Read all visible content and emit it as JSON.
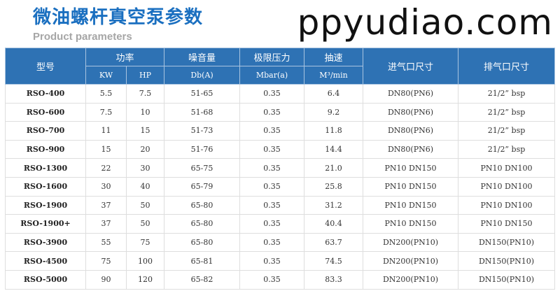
{
  "title": "微油螺杆真空泵参数",
  "subtitle": "Product parameters",
  "headers": {
    "model": "型号",
    "power": "功率",
    "kw": "KW",
    "hp": "HP",
    "noise": "噪音量",
    "noise_unit": "Db(A)",
    "pressure": "极限压力",
    "pressure_unit": "Mbar(a)",
    "speed": "抽速",
    "speed_unit": "M³/min",
    "inlet": "进气口尺寸",
    "outlet": "排气口尺寸"
  },
  "rows": [
    [
      "RSO-400",
      "5.5",
      "7.5",
      "51-65",
      "0.35",
      "6.4",
      "DN80(PN6)",
      "21/2” bsp"
    ],
    [
      "RSO-600",
      "7.5",
      "10",
      "51-68",
      "0.35",
      "9.2",
      "DN80(PN6)",
      "21/2” bsp"
    ],
    [
      "RSO-700",
      "11",
      "15",
      "51-73",
      "0.35",
      "11.8",
      "DN80(PN6)",
      "21/2” bsp"
    ],
    [
      "RSO-900",
      "15",
      "20",
      "51-76",
      "0.35",
      "14.4",
      "DN80(PN6)",
      "21/2” bsp"
    ],
    [
      "RSO-1300",
      "22",
      "30",
      "65-75",
      "0.35",
      "21.0",
      "PN10 DN150",
      "PN10 DN100"
    ],
    [
      "RSO-1600",
      "30",
      "40",
      "65-79",
      "0.35",
      "25.8",
      "PN10 DN150",
      "PN10 DN100"
    ],
    [
      "RSO-1900",
      "37",
      "50",
      "65-80",
      "0.35",
      "31.2",
      "PN10 DN150",
      "PN10 DN100"
    ],
    [
      "RSO-1900+",
      "37",
      "50",
      "65-80",
      "0.35",
      "40.4",
      "PN10 DN150",
      "PN10 DN150"
    ],
    [
      "RSO-3900",
      "55",
      "75",
      "65-80",
      "0.35",
      "63.7",
      "DN200(PN10)",
      "DN150(PN10)"
    ],
    [
      "RSO-4500",
      "75",
      "100",
      "65-81",
      "0.35",
      "74.5",
      "DN200(PN10)",
      "DN150(PN10)"
    ],
    [
      "RSO-5000",
      "90",
      "120",
      "65-82",
      "0.35",
      "83.3",
      "DN200(PN10)",
      "DN150(PN10)"
    ]
  ],
  "watermark": "ppyudiao.com"
}
